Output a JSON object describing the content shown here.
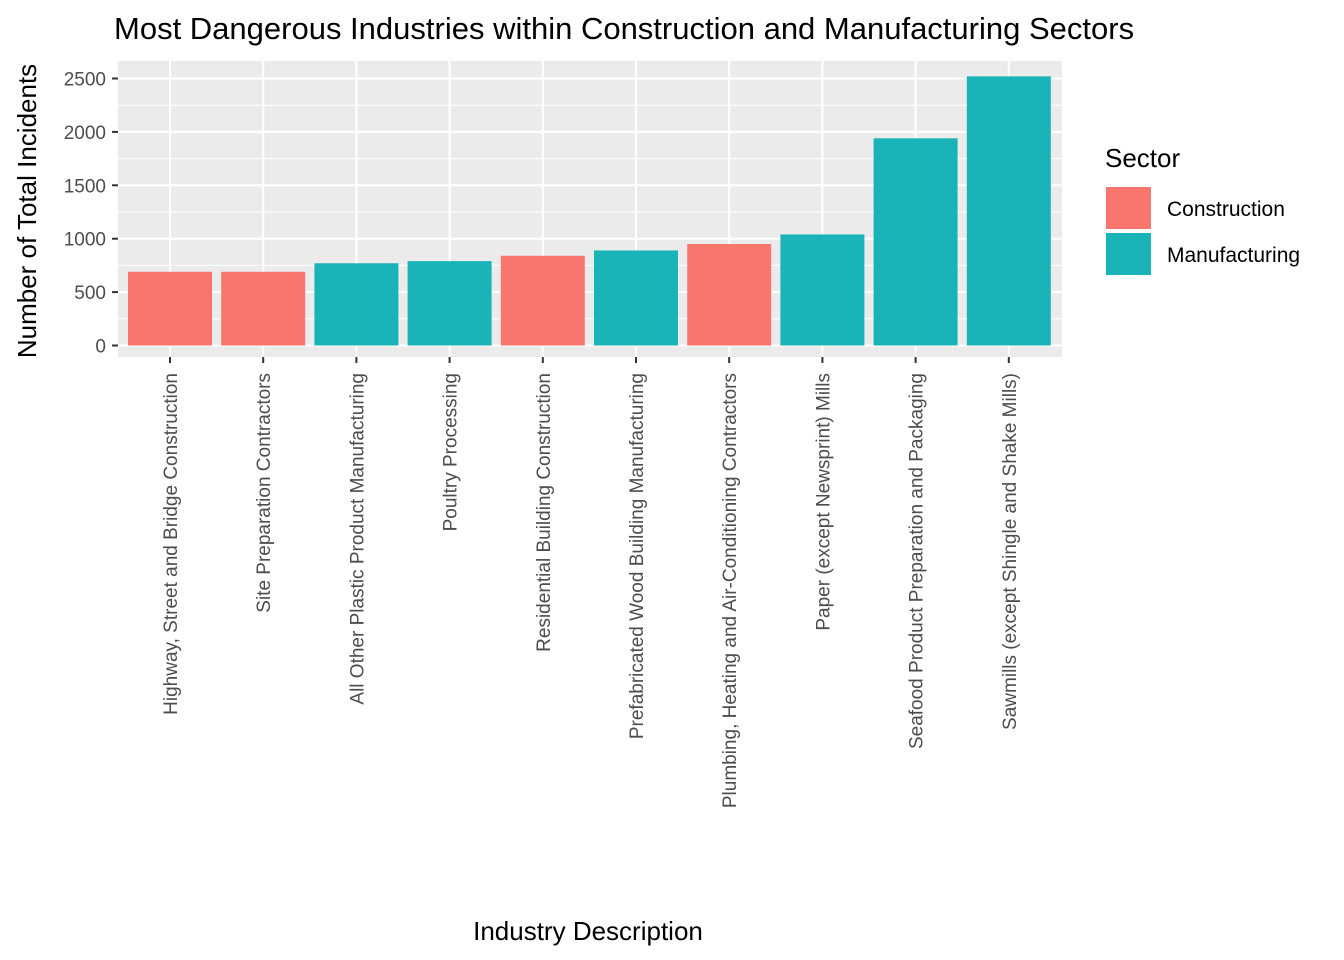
{
  "chart_data": {
    "type": "bar",
    "title": "Most Dangerous Industries within Construction and Manufacturing Sectors",
    "xlabel": "Industry Description",
    "ylabel": "Number of Total Incidents",
    "ylim": [
      0,
      2500
    ],
    "yticks": [
      "0",
      "500",
      "1000",
      "1500",
      "2000",
      "2500"
    ],
    "grid": true,
    "legend": {
      "title": "Sector",
      "position": "right",
      "entries": [
        {
          "name": "Construction",
          "color": "#F8766D"
        },
        {
          "name": "Manufacturing",
          "color": "#1AB4B8"
        }
      ]
    },
    "categories": [
      "Highway, Street and Bridge Construction",
      "Site Preparation Contractors",
      "All Other Plastic Product Manufacturing",
      "Poultry Processing",
      "Residential Building Construction",
      "Prefabricated Wood Building Manufacturing",
      "Plumbing, Heating and Air-Conditioning Contractors",
      "Paper (except Newsprint) Mills",
      "Seafood Product Preparation and Packaging",
      "Sawmills (except Shingle and Shake Mills)"
    ],
    "values": [
      690,
      690,
      770,
      790,
      840,
      890,
      950,
      1040,
      1940,
      2520
    ],
    "sectors": [
      "Construction",
      "Construction",
      "Manufacturing",
      "Manufacturing",
      "Construction",
      "Manufacturing",
      "Construction",
      "Manufacturing",
      "Manufacturing",
      "Manufacturing"
    ]
  }
}
